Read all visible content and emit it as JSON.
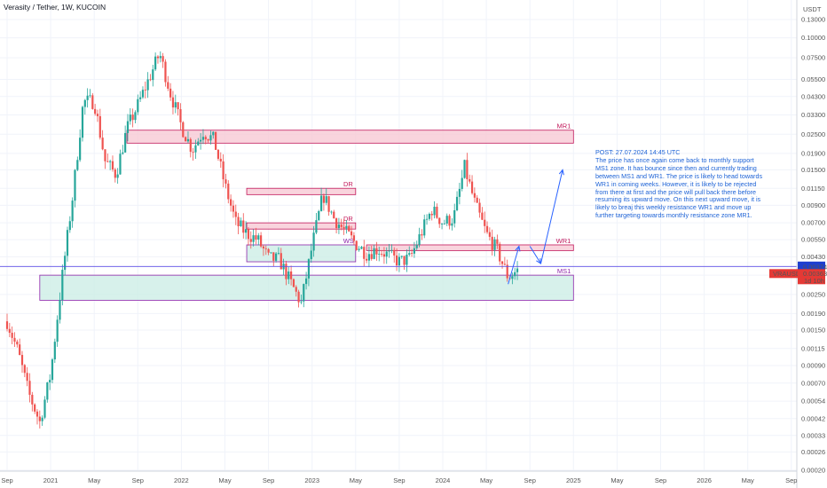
{
  "header": {
    "title": "Verasity / Tether, 1W, KUCOIN"
  },
  "note": {
    "title": "POST: 27.07.2024 14:45 UTC",
    "text": "The price has once again come back to monthly support MS1 zone. It has bounce since then and currently trading between MS1 and WR1. The price is likely to head towards WR1 in coming weeks. However, it is likely to be rejected from there at first and the price will pull back there before resuming its upward move. On this next upward move, it is likely to breaj this weekly resistance WR1 and move up further targeting towards monthly resistance zone MR1."
  },
  "price_tags": {
    "currency": "USDT",
    "last_price": "0.00374",
    "symbol": "VRAUSDT",
    "symbol_price": "0.00363",
    "countdown": "1d 10h"
  },
  "colors": {
    "up": "#26a69a",
    "down": "#ef5350",
    "resistance_fill": "#f8c9d4",
    "resistance_stroke": "#c2185b",
    "support_fill": "#cdeee6",
    "support_stroke": "#8e24aa",
    "line": "#5c4ee5",
    "arrow": "#2962ff",
    "tag_price": "#1e3fcf",
    "tag_symbol": "#e53935"
  },
  "chart_data": {
    "type": "candlestick",
    "title": "Verasity / Tether, 1W, KUCOIN",
    "y_scale": "log",
    "y_ticks": [
      "0.13000",
      "0.10000",
      "0.07500",
      "0.05500",
      "0.04300",
      "0.03300",
      "0.02500",
      "0.01900",
      "0.01500",
      "0.01150",
      "0.00900",
      "0.00700",
      "0.00550",
      "0.00430",
      "0.00330",
      "0.00250",
      "0.00190",
      "0.00150",
      "0.00115",
      "0.00090",
      "0.00070",
      "0.00054",
      "0.00042",
      "0.00033",
      "0.00026",
      "0.00020"
    ],
    "x_ticks": [
      "Sep",
      "2021",
      "May",
      "Sep",
      "2022",
      "May",
      "Sep",
      "2023",
      "May",
      "Sep",
      "2024",
      "May",
      "Sep",
      "2025",
      "May",
      "Sep",
      "2026",
      "May",
      "Sep"
    ],
    "x_tick_dates": [
      "2020-09",
      "2021-01",
      "2021-05",
      "2021-09",
      "2022-01",
      "2022-05",
      "2022-09",
      "2023-01",
      "2023-05",
      "2023-09",
      "2024-01",
      "2024-05",
      "2024-09",
      "2025-01",
      "2025-05",
      "2025-09",
      "2026-01",
      "2026-05",
      "2026-09"
    ],
    "price_path": [
      [
        "2020-09",
        0.0017
      ],
      [
        "2020-10",
        0.0011
      ],
      [
        "2020-11",
        0.0006
      ],
      [
        "2020-12",
        0.0004
      ],
      [
        "2021-01",
        0.0008
      ],
      [
        "2021-02",
        0.003
      ],
      [
        "2021-03",
        0.01
      ],
      [
        "2021-04",
        0.04
      ],
      [
        "2021-05",
        0.04
      ],
      [
        "2021-06",
        0.017
      ],
      [
        "2021-07",
        0.014
      ],
      [
        "2021-08",
        0.027
      ],
      [
        "2021-09",
        0.038
      ],
      [
        "2021-10",
        0.055
      ],
      [
        "2021-11",
        0.08
      ],
      [
        "2021-12",
        0.045
      ],
      [
        "2022-01",
        0.028
      ],
      [
        "2022-02",
        0.02
      ],
      [
        "2022-03",
        0.026
      ],
      [
        "2022-04",
        0.023
      ],
      [
        "2022-05",
        0.012
      ],
      [
        "2022-06",
        0.007
      ],
      [
        "2022-07",
        0.006
      ],
      [
        "2022-08",
        0.0055
      ],
      [
        "2022-09",
        0.0042
      ],
      [
        "2022-10",
        0.0041
      ],
      [
        "2022-11",
        0.003
      ],
      [
        "2022-12",
        0.0022
      ],
      [
        "2023-01",
        0.005
      ],
      [
        "2023-02",
        0.0105
      ],
      [
        "2023-03",
        0.0075
      ],
      [
        "2023-04",
        0.0062
      ],
      [
        "2023-05",
        0.0052
      ],
      [
        "2023-06",
        0.0045
      ],
      [
        "2023-07",
        0.0048
      ],
      [
        "2023-08",
        0.0044
      ],
      [
        "2023-09",
        0.004
      ],
      [
        "2023-10",
        0.0042
      ],
      [
        "2023-11",
        0.006
      ],
      [
        "2023-12",
        0.0085
      ],
      [
        "2024-01",
        0.007
      ],
      [
        "2024-02",
        0.0075
      ],
      [
        "2024-03",
        0.0155
      ],
      [
        "2024-04",
        0.009
      ],
      [
        "2024-05",
        0.006
      ],
      [
        "2024-06",
        0.0047
      ],
      [
        "2024-07",
        0.0032
      ],
      [
        "2024-08",
        0.0036
      ]
    ],
    "zones": [
      {
        "label": "MR1",
        "type": "resistance",
        "low": 0.022,
        "high": 0.0265,
        "start": "2021-08",
        "end": "2025-01"
      },
      {
        "label": "DR",
        "type": "resistance",
        "low": 0.0105,
        "high": 0.0115,
        "start": "2022-07",
        "end": "2023-05"
      },
      {
        "label": "DR",
        "type": "resistance",
        "low": 0.0064,
        "high": 0.007,
        "start": "2022-07",
        "end": "2023-05"
      },
      {
        "label": "WR1",
        "type": "resistance",
        "low": 0.0047,
        "high": 0.0051,
        "start": "2023-06",
        "end": "2025-01"
      },
      {
        "label": "WS",
        "type": "support",
        "low": 0.004,
        "high": 0.0051,
        "start": "2022-07",
        "end": "2023-05"
      },
      {
        "label": "MS1",
        "type": "support",
        "low": 0.0023,
        "high": 0.0033,
        "start": "2020-12",
        "end": "2025-01"
      }
    ],
    "horizontal_line": 0.00374,
    "projection_arrows": [
      [
        [
          "2024-07",
          0.0029
        ],
        [
          "2024-08",
          0.005
        ]
      ],
      [
        [
          "2024-09",
          0.005
        ],
        [
          "2024-10",
          0.0039
        ]
      ],
      [
        [
          "2024-10",
          0.0039
        ],
        [
          "2024-12",
          0.015
        ]
      ]
    ]
  }
}
